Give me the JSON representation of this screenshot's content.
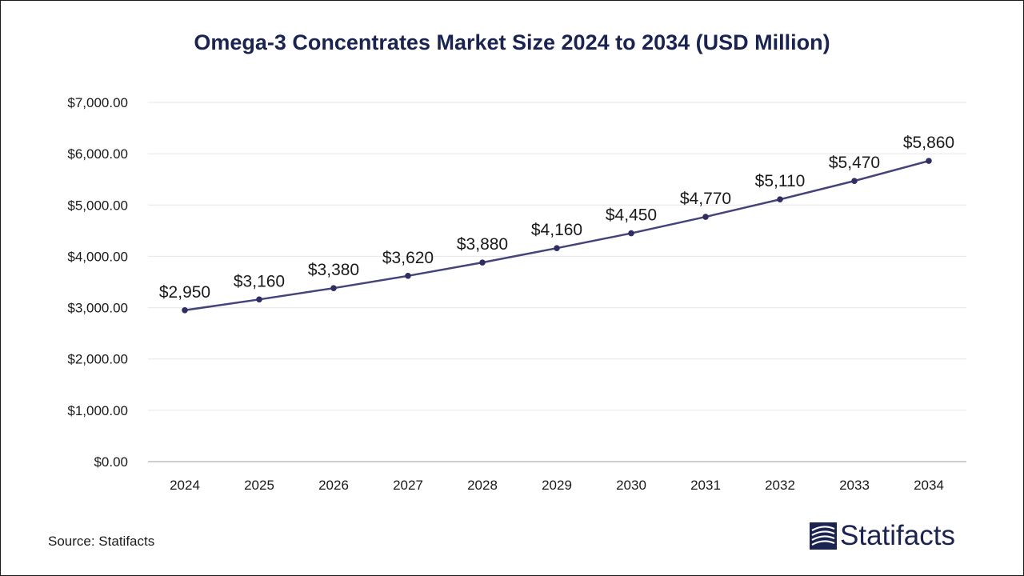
{
  "title": "Omega-3 Concentrates Market Size 2024 to 2034 (USD Million)",
  "source": "Source: Statifacts",
  "brand": {
    "name": "Statifacts",
    "icon": "statifacts-logo-icon"
  },
  "colors": {
    "line": "#44447a",
    "marker": "#2e2e62",
    "title": "#1b2350",
    "grid": "#e6e6e6",
    "axis": "#bfbfbf"
  },
  "chart_data": {
    "type": "line",
    "title": "Omega-3 Concentrates Market Size 2024 to 2034 (USD Million)",
    "categories": [
      "2024",
      "2025",
      "2026",
      "2027",
      "2028",
      "2029",
      "2030",
      "2031",
      "2032",
      "2033",
      "2034"
    ],
    "series": [
      {
        "values": [
          2950,
          3160,
          3380,
          3620,
          3880,
          4160,
          4450,
          4770,
          5110,
          5470,
          5860
        ],
        "labels": [
          "$2,950",
          "$3,160",
          "$3,380",
          "$3,620",
          "$3,880",
          "$4,160",
          "$4,450",
          "$4,770",
          "$5,110",
          "$5,470",
          "$5,860"
        ]
      }
    ],
    "ylim": [
      0,
      7000
    ],
    "yticks": [
      0,
      1000,
      2000,
      3000,
      4000,
      5000,
      6000,
      7000
    ],
    "ytick_labels": [
      "$0.00",
      "$1,000.00",
      "$2,000.00",
      "$3,000.00",
      "$4,000.00",
      "$5,000.00",
      "$6,000.00",
      "$7,000.00"
    ],
    "grid": true,
    "legend": "none"
  }
}
